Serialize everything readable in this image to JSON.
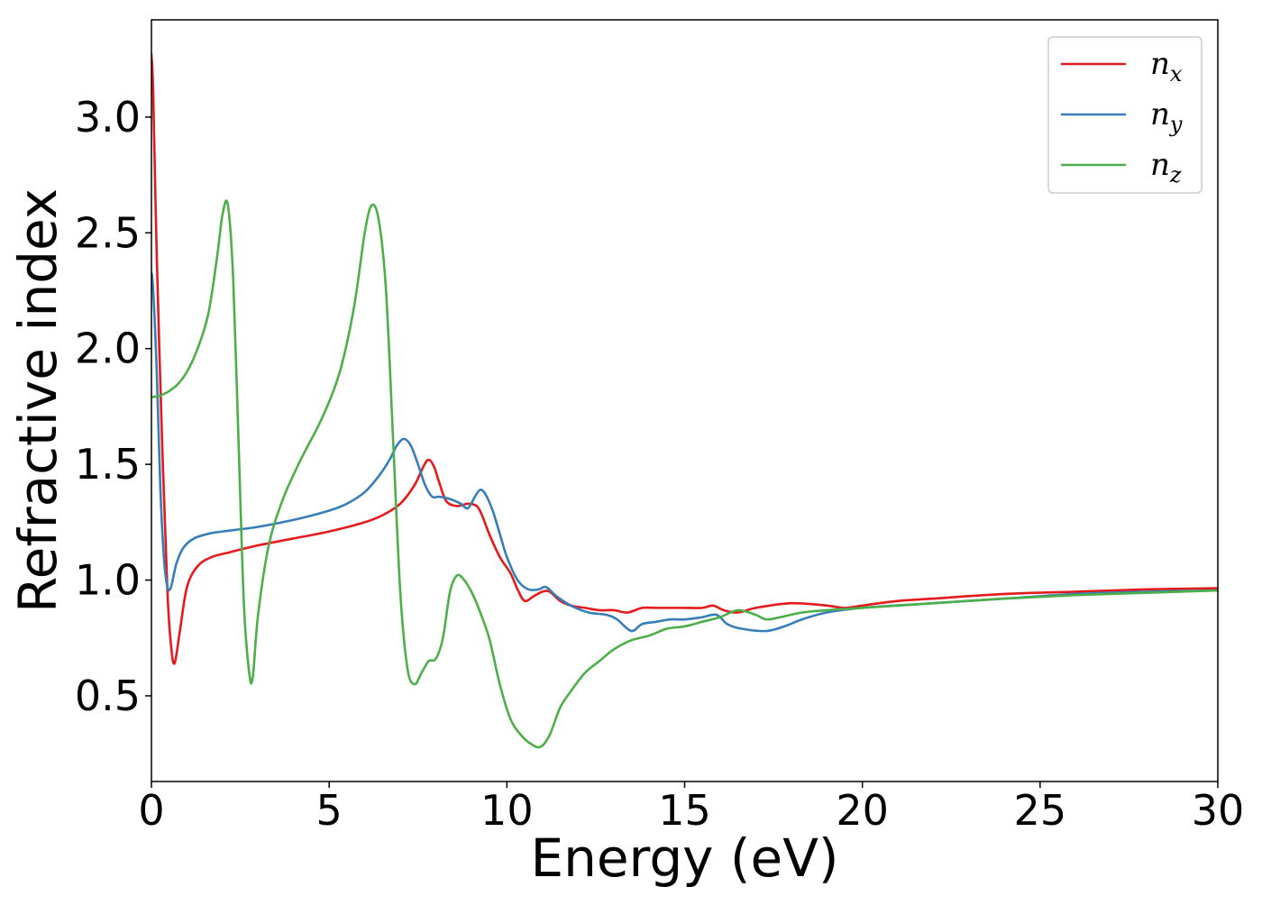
{
  "chart_data": {
    "type": "line",
    "title": "",
    "xlabel": "Energy (eV)",
    "ylabel": "Refractive index",
    "xlim": [
      0,
      30
    ],
    "ylim": [
      0.13,
      3.42
    ],
    "xticks": [
      {
        "value": 0,
        "label": "0"
      },
      {
        "value": 5,
        "label": "5"
      },
      {
        "value": 10,
        "label": "10"
      },
      {
        "value": 15,
        "label": "15"
      },
      {
        "value": 20,
        "label": "20"
      },
      {
        "value": 25,
        "label": "25"
      },
      {
        "value": 30,
        "label": "30"
      }
    ],
    "yticks": [
      {
        "value": 0.5,
        "label": "0.5"
      },
      {
        "value": 1.0,
        "label": "1.0"
      },
      {
        "value": 1.5,
        "label": "1.5"
      },
      {
        "value": 2.0,
        "label": "2.0"
      },
      {
        "value": 2.5,
        "label": "2.5"
      },
      {
        "value": 3.0,
        "label": "3.0"
      }
    ],
    "grid": false,
    "legend_position": "top-right",
    "series": [
      {
        "name": "n_x",
        "label_base": "n",
        "label_sub": "x",
        "color": "#e41a1c",
        "x": [
          0,
          0.05,
          0.15,
          0.3,
          0.45,
          0.55,
          0.65,
          0.8,
          1.0,
          1.3,
          1.7,
          2.2,
          3.0,
          4.0,
          5.0,
          6.0,
          6.5,
          7.0,
          7.4,
          7.65,
          7.8,
          7.95,
          8.1,
          8.3,
          8.6,
          8.9,
          9.15,
          9.3,
          9.5,
          9.8,
          10.1,
          10.3,
          10.5,
          10.75,
          11.0,
          11.2,
          11.5,
          11.8,
          12.2,
          12.6,
          13.0,
          13.4,
          13.8,
          14.2,
          14.6,
          15.0,
          15.5,
          15.8,
          16.1,
          16.5,
          17.0,
          18.0,
          19.0,
          19.5,
          20.0,
          21.0,
          22.0,
          24.0,
          26.0,
          28.0,
          30.0
        ],
        "y": [
          3.27,
          3.1,
          2.4,
          1.6,
          0.95,
          0.72,
          0.64,
          0.78,
          0.97,
          1.06,
          1.1,
          1.12,
          1.15,
          1.18,
          1.21,
          1.25,
          1.28,
          1.33,
          1.41,
          1.49,
          1.52,
          1.49,
          1.42,
          1.34,
          1.32,
          1.33,
          1.32,
          1.28,
          1.2,
          1.1,
          1.03,
          0.96,
          0.91,
          0.93,
          0.95,
          0.95,
          0.91,
          0.89,
          0.88,
          0.87,
          0.87,
          0.86,
          0.88,
          0.88,
          0.88,
          0.88,
          0.88,
          0.89,
          0.87,
          0.86,
          0.88,
          0.9,
          0.89,
          0.88,
          0.89,
          0.91,
          0.92,
          0.94,
          0.95,
          0.96,
          0.965
        ]
      },
      {
        "name": "n_y",
        "label_base": "n",
        "label_sub": "y",
        "color": "#377eb8",
        "x": [
          0,
          0.05,
          0.15,
          0.25,
          0.35,
          0.45,
          0.55,
          0.7,
          0.9,
          1.2,
          1.6,
          2.0,
          3.0,
          4.0,
          5.0,
          5.5,
          6.0,
          6.4,
          6.7,
          6.9,
          7.1,
          7.3,
          7.5,
          7.7,
          7.9,
          8.1,
          8.4,
          8.7,
          8.9,
          9.1,
          9.25,
          9.4,
          9.6,
          9.8,
          10.0,
          10.3,
          10.6,
          10.9,
          11.1,
          11.4,
          11.8,
          12.3,
          12.8,
          13.1,
          13.5,
          13.8,
          14.2,
          14.6,
          15.0,
          15.5,
          15.9,
          16.2,
          16.6,
          17.3,
          17.8,
          18.3,
          19.0,
          20.0,
          22.0,
          24.0,
          26.0,
          28.0,
          30.0
        ],
        "y": [
          2.33,
          2.25,
          1.9,
          1.4,
          1.1,
          0.97,
          0.97,
          1.07,
          1.14,
          1.18,
          1.2,
          1.21,
          1.23,
          1.26,
          1.3,
          1.33,
          1.38,
          1.45,
          1.52,
          1.58,
          1.61,
          1.58,
          1.5,
          1.41,
          1.36,
          1.36,
          1.35,
          1.33,
          1.31,
          1.36,
          1.39,
          1.37,
          1.3,
          1.2,
          1.1,
          1.0,
          0.96,
          0.96,
          0.97,
          0.93,
          0.89,
          0.86,
          0.85,
          0.83,
          0.78,
          0.81,
          0.82,
          0.83,
          0.83,
          0.84,
          0.85,
          0.81,
          0.79,
          0.78,
          0.8,
          0.83,
          0.86,
          0.88,
          0.9,
          0.92,
          0.94,
          0.95,
          0.955
        ]
      },
      {
        "name": "n_z",
        "label_base": "n",
        "label_sub": "z",
        "color": "#4daf4a",
        "x": [
          0,
          0.3,
          0.7,
          1.0,
          1.3,
          1.6,
          1.85,
          2.0,
          2.15,
          2.3,
          2.45,
          2.6,
          2.75,
          2.85,
          3.0,
          3.3,
          3.7,
          4.2,
          4.8,
          5.3,
          5.7,
          6.0,
          6.2,
          6.4,
          6.6,
          6.8,
          7.0,
          7.2,
          7.4,
          7.6,
          7.8,
          8.0,
          8.2,
          8.4,
          8.6,
          8.8,
          9.0,
          9.2,
          9.5,
          9.8,
          10.1,
          10.4,
          10.7,
          10.95,
          11.2,
          11.5,
          11.8,
          12.2,
          12.6,
          13.0,
          13.5,
          14.0,
          14.5,
          15.0,
          15.5,
          16.0,
          16.5,
          17.0,
          17.3,
          17.7,
          18.3,
          19.0,
          20.0,
          22.0,
          24.0,
          26.0,
          28.0,
          30.0
        ],
        "y": [
          1.79,
          1.8,
          1.84,
          1.9,
          2.0,
          2.15,
          2.4,
          2.58,
          2.62,
          2.3,
          1.6,
          0.9,
          0.6,
          0.58,
          0.85,
          1.15,
          1.35,
          1.52,
          1.7,
          1.9,
          2.18,
          2.5,
          2.62,
          2.55,
          2.25,
          1.6,
          0.95,
          0.62,
          0.55,
          0.6,
          0.65,
          0.66,
          0.75,
          0.95,
          1.02,
          1.0,
          0.95,
          0.88,
          0.75,
          0.55,
          0.4,
          0.33,
          0.29,
          0.28,
          0.33,
          0.45,
          0.52,
          0.6,
          0.65,
          0.7,
          0.74,
          0.76,
          0.79,
          0.8,
          0.82,
          0.84,
          0.87,
          0.85,
          0.83,
          0.84,
          0.86,
          0.87,
          0.88,
          0.9,
          0.92,
          0.935,
          0.945,
          0.955
        ]
      }
    ]
  }
}
